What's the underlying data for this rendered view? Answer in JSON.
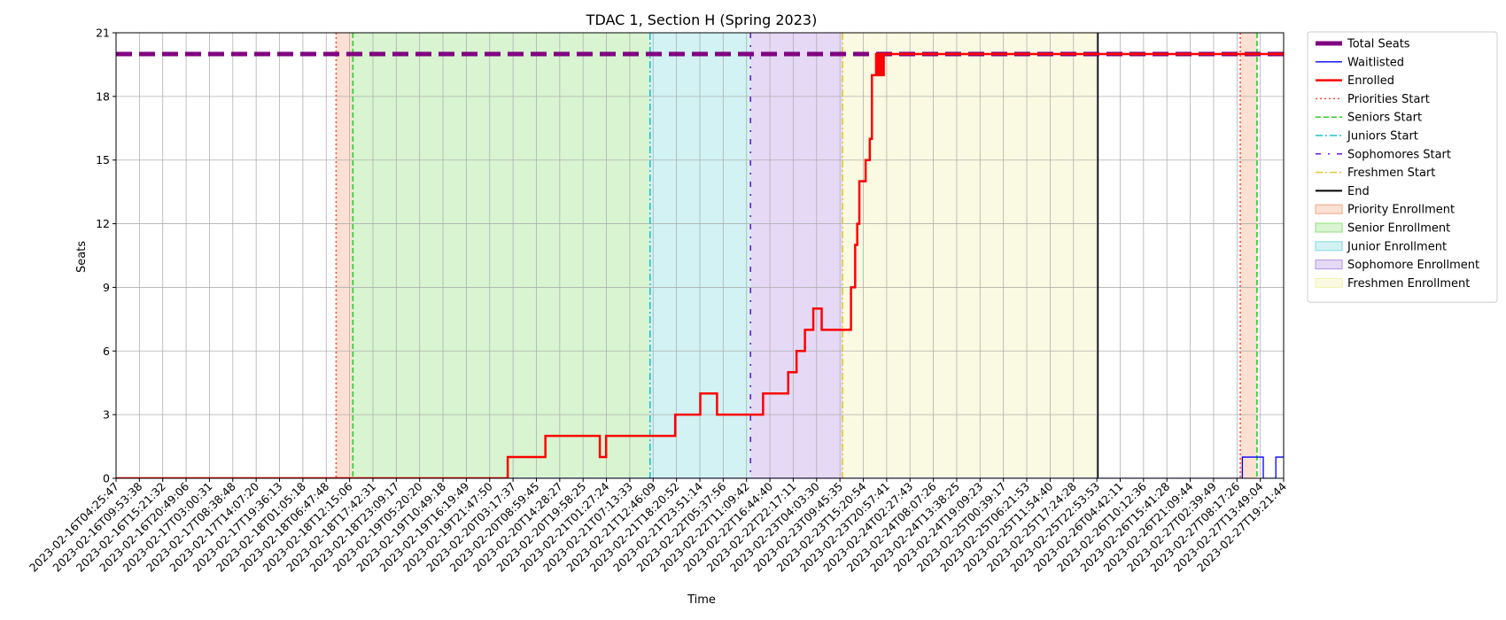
{
  "chart_data": {
    "type": "line",
    "title": "TDAC 1, Section H (Spring 2023)",
    "xlabel": "Time",
    "ylabel": "Seats",
    "ylim": [
      0,
      21
    ],
    "yticks": [
      0,
      3,
      6,
      9,
      12,
      15,
      18,
      21
    ],
    "grid": true,
    "legend_placement": "outside-right",
    "xlim": [
      "2023-02-16T04:25:47",
      "2023-02-27T19:21:44"
    ],
    "xtick_labels": [
      "2023-02-16T04:25:47",
      "2023-02-16T09:53:38",
      "2023-02-16T15:21:32",
      "2023-02-16T20:49:06",
      "2023-02-17T03:00:31",
      "2023-02-17T08:38:48",
      "2023-02-17T14:07:20",
      "2023-02-17T19:36:13",
      "2023-02-18T01:05:18",
      "2023-02-18T06:47:48",
      "2023-02-18T12:15:06",
      "2023-02-18T17:42:31",
      "2023-02-18T23:09:17",
      "2023-02-19T05:20:20",
      "2023-02-19T10:49:18",
      "2023-02-19T16:19:49",
      "2023-02-19T21:47:50",
      "2023-02-20T03:17:37",
      "2023-02-20T08:59:45",
      "2023-02-20T14:28:27",
      "2023-02-20T19:58:25",
      "2023-02-21T01:27:24",
      "2023-02-21T07:13:33",
      "2023-02-21T12:46:09",
      "2023-02-21T18:20:52",
      "2023-02-21T23:51:14",
      "2023-02-22T05:37:56",
      "2023-02-22T11:09:42",
      "2023-02-22T16:44:40",
      "2023-02-22T22:17:11",
      "2023-02-23T04:03:30",
      "2023-02-23T09:45:35",
      "2023-02-23T15:20:54",
      "2023-02-23T20:57:41",
      "2023-02-24T02:27:43",
      "2023-02-24T08:07:26",
      "2023-02-24T13:38:25",
      "2023-02-24T19:09:23",
      "2023-02-25T00:39:17",
      "2023-02-25T06:21:53",
      "2023-02-25T11:54:40",
      "2023-02-25T17:24:28",
      "2023-02-25T22:53:53",
      "2023-02-26T04:42:11",
      "2023-02-26T10:12:36",
      "2023-02-26T15:41:28",
      "2023-02-26T21:09:44",
      "2023-02-27T02:39:49",
      "2023-02-27T08:17:26",
      "2023-02-27T13:49:04",
      "2023-02-27T19:21:44"
    ],
    "regions": [
      {
        "name": "Priority Enrollment",
        "start": "2023-02-18T09:00:00",
        "end": "2023-02-18T13:00:00",
        "color": "#f4a582"
      },
      {
        "name": "Senior Enrollment",
        "start": "2023-02-18T13:00:00",
        "end": "2023-02-21T12:00:00",
        "color": "#90e07a"
      },
      {
        "name": "Junior Enrollment",
        "start": "2023-02-21T12:00:00",
        "end": "2023-02-22T12:00:00",
        "color": "#7fdbe0"
      },
      {
        "name": "Sophomore Enrollment",
        "start": "2023-02-22T12:00:00",
        "end": "2023-02-23T10:00:00",
        "color": "#b493e6"
      },
      {
        "name": "Freshmen Enrollment",
        "start": "2023-02-23T10:00:00",
        "end": "2023-02-25T23:00:00",
        "color": "#eff2a8"
      },
      {
        "name": "Priority Enrollment",
        "start": "2023-02-27T09:00:00",
        "end": "2023-02-27T13:00:00",
        "color": "#f4a582"
      }
    ],
    "vlines": [
      {
        "name": "Priorities Start",
        "x": "2023-02-18T09:00:00",
        "color": "#ff4d2e",
        "dash": "2,3"
      },
      {
        "name": "Seniors Start",
        "x": "2023-02-18T13:00:00",
        "color": "#2ccd2c",
        "dash": "6,3"
      },
      {
        "name": "Juniors Start",
        "x": "2023-02-21T12:00:00",
        "color": "#17c5cc",
        "dash": "8,3,2,3"
      },
      {
        "name": "Sophomores Start",
        "x": "2023-02-22T12:00:00",
        "color": "#6a18e0",
        "dash": "6,8,2,8"
      },
      {
        "name": "Freshmen Start",
        "x": "2023-02-23T10:00:00",
        "color": "#e0cc28",
        "dash": "8,3,2,3"
      },
      {
        "name": "End",
        "x": "2023-02-25T23:00:00",
        "color": "#000000",
        "dash": ""
      },
      {
        "name": "Priorities Start",
        "x": "2023-02-27T09:00:00",
        "color": "#ff4d2e",
        "dash": "2,3"
      },
      {
        "name": "Seniors Start",
        "x": "2023-02-27T13:00:00",
        "color": "#2ccd2c",
        "dash": "6,3"
      }
    ],
    "series": [
      {
        "name": "Total Seats",
        "color": "#800080",
        "style": "dashed-thick",
        "points": [
          [
            "2023-02-16T04:25:47",
            20
          ],
          [
            "2023-02-27T19:21:44",
            20
          ]
        ]
      },
      {
        "name": "Waitlisted",
        "color": "#0000ff",
        "style": "thin",
        "points": [
          [
            "2023-02-16T04:25:47",
            0
          ],
          [
            "2023-02-27T09:30:00",
            0
          ],
          [
            "2023-02-27T09:30:00",
            1
          ],
          [
            "2023-02-27T14:30:00",
            1
          ],
          [
            "2023-02-27T14:30:00",
            0
          ],
          [
            "2023-02-27T17:30:00",
            0
          ],
          [
            "2023-02-27T17:30:00",
            1
          ],
          [
            "2023-02-27T19:21:44",
            1
          ]
        ]
      },
      {
        "name": "Enrolled",
        "color": "#ff0000",
        "style": "thick",
        "points": [
          [
            "2023-02-16T04:25:47",
            0
          ],
          [
            "2023-02-20T02:00:00",
            0
          ],
          [
            "2023-02-20T02:00:00",
            1
          ],
          [
            "2023-02-20T11:00:00",
            1
          ],
          [
            "2023-02-20T11:00:00",
            2
          ],
          [
            "2023-02-21T00:00:00",
            2
          ],
          [
            "2023-02-21T00:00:00",
            1
          ],
          [
            "2023-02-21T01:30:00",
            1
          ],
          [
            "2023-02-21T01:30:00",
            2
          ],
          [
            "2023-02-21T18:00:00",
            2
          ],
          [
            "2023-02-21T18:00:00",
            3
          ],
          [
            "2023-02-22T00:00:00",
            3
          ],
          [
            "2023-02-22T00:00:00",
            4
          ],
          [
            "2023-02-22T04:00:00",
            4
          ],
          [
            "2023-02-22T04:00:00",
            3
          ],
          [
            "2023-02-22T15:00:00",
            3
          ],
          [
            "2023-02-22T15:00:00",
            4
          ],
          [
            "2023-02-22T21:00:00",
            4
          ],
          [
            "2023-02-22T21:00:00",
            5
          ],
          [
            "2023-02-22T23:00:00",
            5
          ],
          [
            "2023-02-22T23:00:00",
            6
          ],
          [
            "2023-02-23T01:00:00",
            6
          ],
          [
            "2023-02-23T01:00:00",
            7
          ],
          [
            "2023-02-23T03:00:00",
            7
          ],
          [
            "2023-02-23T03:00:00",
            8
          ],
          [
            "2023-02-23T05:00:00",
            8
          ],
          [
            "2023-02-23T05:00:00",
            7
          ],
          [
            "2023-02-23T12:00:00",
            7
          ],
          [
            "2023-02-23T12:00:00",
            9
          ],
          [
            "2023-02-23T13:00:00",
            9
          ],
          [
            "2023-02-23T13:00:00",
            11
          ],
          [
            "2023-02-23T13:30:00",
            11
          ],
          [
            "2023-02-23T13:30:00",
            12
          ],
          [
            "2023-02-23T14:00:00",
            12
          ],
          [
            "2023-02-23T14:00:00",
            14
          ],
          [
            "2023-02-23T15:30:00",
            14
          ],
          [
            "2023-02-23T15:30:00",
            15
          ],
          [
            "2023-02-23T16:30:00",
            15
          ],
          [
            "2023-02-23T16:30:00",
            16
          ],
          [
            "2023-02-23T17:00:00",
            16
          ],
          [
            "2023-02-23T17:00:00",
            19
          ],
          [
            "2023-02-23T18:00:00",
            19
          ],
          [
            "2023-02-23T18:00:00",
            20
          ],
          [
            "2023-02-23T18:30:00",
            20
          ],
          [
            "2023-02-23T18:30:00",
            19
          ],
          [
            "2023-02-23T19:00:00",
            19
          ],
          [
            "2023-02-23T19:00:00",
            20
          ],
          [
            "2023-02-23T19:20:00",
            20
          ],
          [
            "2023-02-23T19:20:00",
            19
          ],
          [
            "2023-02-23T19:50:00",
            19
          ],
          [
            "2023-02-23T19:50:00",
            20
          ],
          [
            "2023-02-27T19:21:44",
            20
          ]
        ]
      }
    ],
    "legend": [
      {
        "label": "Total Seats",
        "kind": "line",
        "color": "#800080",
        "dash": "",
        "width": 5
      },
      {
        "label": "Waitlisted",
        "kind": "line",
        "color": "#0000ff",
        "dash": "",
        "width": 1.3
      },
      {
        "label": "Enrolled",
        "kind": "line",
        "color": "#ff0000",
        "dash": "",
        "width": 2.5
      },
      {
        "label": "Priorities Start",
        "kind": "line",
        "color": "#ff4d2e",
        "dash": "2,3",
        "width": 1.5
      },
      {
        "label": "Seniors Start",
        "kind": "line",
        "color": "#2ccd2c",
        "dash": "6,3",
        "width": 1.5
      },
      {
        "label": "Juniors Start",
        "kind": "line",
        "color": "#17c5cc",
        "dash": "8,3,2,3",
        "width": 1.5
      },
      {
        "label": "Sophomores Start",
        "kind": "line",
        "color": "#6a18e0",
        "dash": "6,8,2,8",
        "width": 1.5
      },
      {
        "label": "Freshmen Start",
        "kind": "line",
        "color": "#e0cc28",
        "dash": "8,3,2,3",
        "width": 1.5
      },
      {
        "label": "End",
        "kind": "line",
        "color": "#000000",
        "dash": "",
        "width": 2
      },
      {
        "label": "Priority Enrollment",
        "kind": "patch",
        "color": "#f4a582"
      },
      {
        "label": "Senior Enrollment",
        "kind": "patch",
        "color": "#90e07a"
      },
      {
        "label": "Junior Enrollment",
        "kind": "patch",
        "color": "#7fdbe0"
      },
      {
        "label": "Sophomore Enrollment",
        "kind": "patch",
        "color": "#b493e6"
      },
      {
        "label": "Freshmen Enrollment",
        "kind": "patch",
        "color": "#eff2a8"
      }
    ]
  }
}
